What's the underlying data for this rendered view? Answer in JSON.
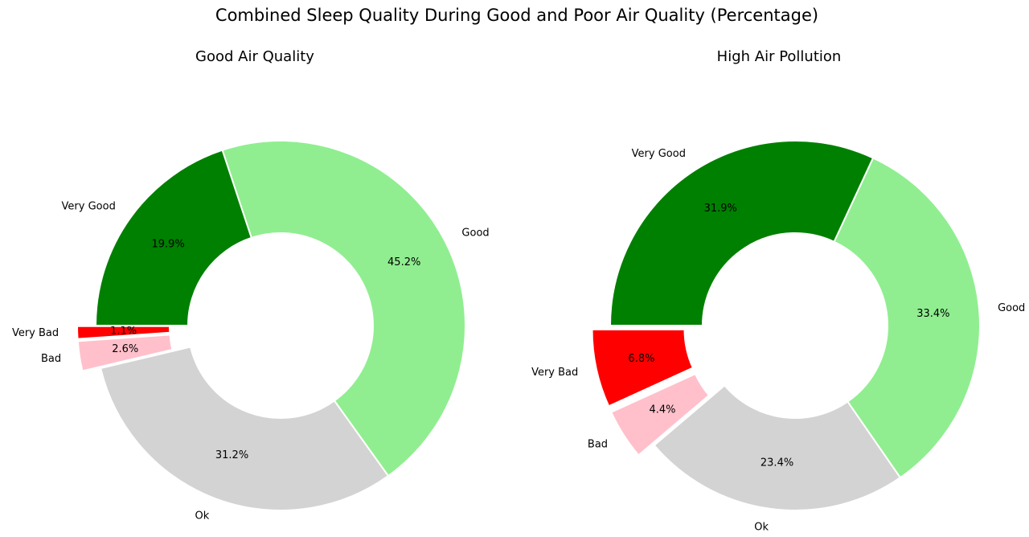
{
  "figure": {
    "title": "Combined Sleep Quality During Good and Poor Air Quality (Percentage)"
  },
  "chart_data": [
    {
      "type": "pie",
      "style": "donut",
      "title": "Good Air Quality",
      "start_angle_deg": 180,
      "direction": "counterclockwise",
      "slices": [
        {
          "label": "Very Bad",
          "value": 1.1,
          "pct_label": "1.1%",
          "color": "#ff0000",
          "exploded": true
        },
        {
          "label": "Bad",
          "value": 2.6,
          "pct_label": "2.6%",
          "color": "#ffc0cb",
          "exploded": true
        },
        {
          "label": "Ok",
          "value": 31.2,
          "pct_label": "31.2%",
          "color": "#d3d3d3",
          "exploded": false
        },
        {
          "label": "Good",
          "value": 45.2,
          "pct_label": "45.2%",
          "color": "#90ee90",
          "exploded": false
        },
        {
          "label": "Very Good",
          "value": 19.9,
          "pct_label": "19.9%",
          "color": "#008000",
          "exploded": false
        }
      ]
    },
    {
      "type": "pie",
      "style": "donut",
      "title": "High Air Pollution",
      "start_angle_deg": 180,
      "direction": "counterclockwise",
      "slices": [
        {
          "label": "Very Bad",
          "value": 6.8,
          "pct_label": "6.8%",
          "color": "#ff0000",
          "exploded": true
        },
        {
          "label": "Bad",
          "value": 4.4,
          "pct_label": "4.4%",
          "color": "#ffc0cb",
          "exploded": true
        },
        {
          "label": "Ok",
          "value": 23.4,
          "pct_label": "23.4%",
          "color": "#d3d3d3",
          "exploded": false
        },
        {
          "label": "Good",
          "value": 33.4,
          "pct_label": "33.4%",
          "color": "#90ee90",
          "exploded": false
        },
        {
          "label": "Very Good",
          "value": 31.9,
          "pct_label": "31.9%",
          "color": "#008000",
          "exploded": false
        }
      ]
    }
  ]
}
